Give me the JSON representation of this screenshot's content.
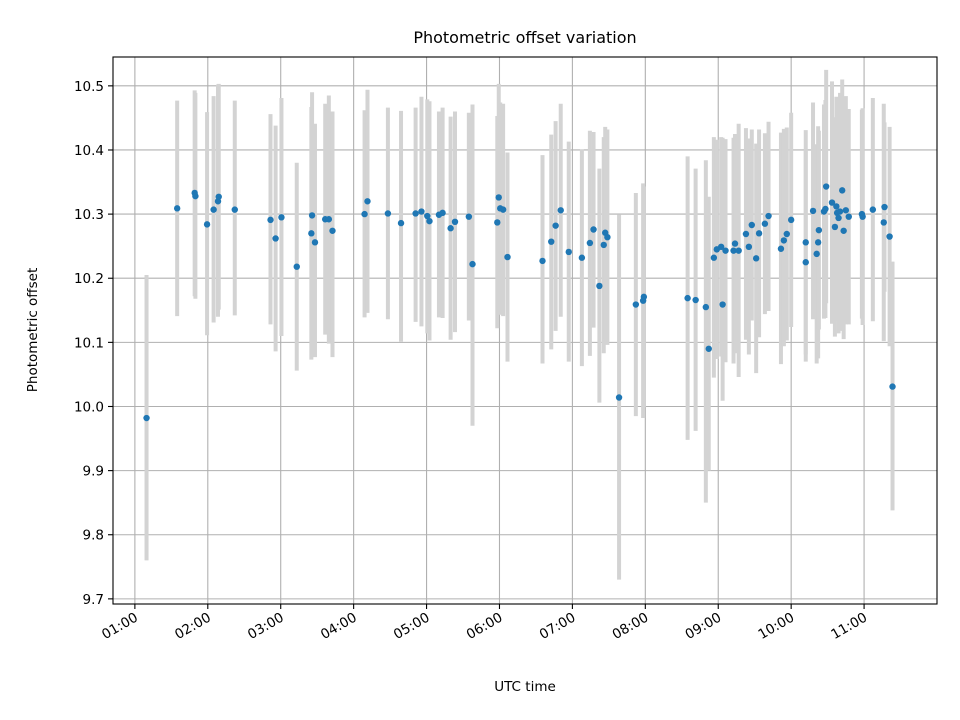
{
  "chart_data": {
    "type": "scatter",
    "title": "Photometric offset variation",
    "xlabel": "UTC time",
    "ylabel": "Photometric offset",
    "xlim": [
      0.7,
      12.0
    ],
    "ylim": [
      9.692,
      10.545
    ],
    "xticks": [
      1,
      2,
      3,
      4,
      5,
      6,
      7,
      8,
      9,
      10,
      11
    ],
    "xtick_labels": [
      "01:00",
      "02:00",
      "03:00",
      "04:00",
      "05:00",
      "06:00",
      "07:00",
      "08:00",
      "09:00",
      "10:00",
      "11:00"
    ],
    "yticks": [
      9.7,
      9.8,
      9.9,
      10.0,
      10.1,
      10.2,
      10.3,
      10.4,
      10.5
    ],
    "ytick_labels": [
      "9.7",
      "9.8",
      "9.9",
      "10.0",
      "10.1",
      "10.2",
      "10.3",
      "10.4",
      "10.5"
    ],
    "grid": true,
    "point_color": "#1f77b4",
    "errorbar_color": "#d3d3d3",
    "series": [
      {
        "name": "offset",
        "x": [
          1.16,
          1.58,
          1.82,
          1.83,
          1.99,
          2.08,
          2.14,
          2.15,
          2.37,
          2.86,
          2.93,
          3.01,
          3.22,
          3.42,
          3.43,
          3.47,
          3.61,
          3.66,
          3.71,
          4.15,
          4.19,
          4.47,
          4.65,
          4.85,
          4.93,
          5.01,
          5.04,
          5.17,
          5.22,
          5.33,
          5.39,
          5.58,
          5.63,
          5.97,
          5.99,
          6.01,
          6.05,
          6.11,
          6.59,
          6.71,
          6.77,
          6.84,
          6.95,
          7.13,
          7.24,
          7.29,
          7.37,
          7.43,
          7.45,
          7.48,
          7.64,
          7.87,
          7.97,
          7.98,
          8.58,
          8.69,
          8.83,
          8.87,
          8.94,
          8.98,
          9.04,
          9.06,
          9.1,
          9.21,
          9.23,
          9.28,
          9.38,
          9.42,
          9.46,
          9.52,
          9.56,
          9.64,
          9.69,
          9.86,
          9.9,
          9.94,
          10.0,
          10.2,
          10.2,
          10.3,
          10.35,
          10.37,
          10.38,
          10.45,
          10.47,
          10.48,
          10.56,
          10.6,
          10.62,
          10.63,
          10.65,
          10.67,
          10.7,
          10.72,
          10.75,
          10.79,
          10.97,
          10.98,
          11.12,
          11.27,
          11.28,
          11.35,
          11.39
        ],
        "y": [
          9.982,
          10.309,
          10.333,
          10.328,
          10.284,
          10.307,
          10.32,
          10.327,
          10.307,
          10.291,
          10.262,
          10.295,
          10.218,
          10.27,
          10.298,
          10.256,
          10.292,
          10.292,
          10.274,
          10.3,
          10.32,
          10.301,
          10.286,
          10.301,
          10.304,
          10.297,
          10.289,
          10.299,
          10.302,
          10.278,
          10.288,
          10.296,
          10.222,
          10.287,
          10.326,
          10.309,
          10.307,
          10.233,
          10.227,
          10.257,
          10.282,
          10.306,
          10.241,
          10.232,
          10.255,
          10.276,
          10.188,
          10.252,
          10.271,
          10.264,
          10.014,
          10.159,
          10.165,
          10.171,
          10.169,
          10.166,
          10.155,
          10.09,
          10.232,
          10.245,
          10.249,
          10.159,
          10.243,
          10.243,
          10.254,
          10.243,
          10.269,
          10.249,
          10.283,
          10.231,
          10.27,
          10.285,
          10.297,
          10.246,
          10.259,
          10.269,
          10.291,
          10.225,
          10.256,
          10.305,
          10.238,
          10.256,
          10.275,
          10.304,
          10.308,
          10.343,
          10.318,
          10.28,
          10.312,
          10.302,
          10.294,
          10.304,
          10.337,
          10.274,
          10.306,
          10.296,
          10.3,
          10.296,
          10.307,
          10.287,
          10.311,
          10.265,
          10.031
        ],
        "y_upper": [
          10.205,
          10.477,
          10.493,
          10.489,
          10.459,
          10.484,
          10.502,
          10.503,
          10.477,
          10.456,
          10.438,
          10.481,
          10.38,
          10.467,
          10.49,
          10.441,
          10.472,
          10.485,
          10.46,
          10.462,
          10.494,
          10.466,
          10.461,
          10.466,
          10.483,
          10.479,
          10.476,
          10.46,
          10.466,
          10.452,
          10.46,
          10.458,
          10.471,
          10.453,
          10.503,
          10.474,
          10.472,
          10.396,
          10.392,
          10.424,
          10.445,
          10.472,
          10.413,
          10.401,
          10.43,
          10.428,
          10.371,
          10.42,
          10.436,
          10.432,
          10.299,
          10.333,
          10.348,
          10.343,
          10.39,
          10.371,
          10.384,
          10.327,
          10.42,
          10.416,
          10.42,
          10.419,
          10.417,
          10.419,
          10.425,
          10.441,
          10.434,
          10.418,
          10.432,
          10.41,
          10.432,
          10.426,
          10.444,
          10.427,
          10.433,
          10.435,
          10.458,
          10.4,
          10.431,
          10.474,
          10.409,
          10.437,
          10.43,
          10.471,
          10.478,
          10.525,
          10.507,
          10.451,
          10.483,
          10.471,
          10.474,
          10.489,
          10.51,
          10.443,
          10.484,
          10.464,
          10.463,
          10.465,
          10.481,
          10.472,
          10.443,
          10.436,
          10.226
        ],
        "y_lower": [
          9.76,
          10.141,
          10.172,
          10.168,
          10.111,
          10.131,
          10.14,
          10.151,
          10.142,
          10.128,
          10.086,
          10.11,
          10.056,
          10.073,
          10.107,
          10.077,
          10.112,
          10.098,
          10.077,
          10.139,
          10.146,
          10.136,
          10.101,
          10.132,
          10.125,
          10.114,
          10.103,
          10.139,
          10.138,
          10.104,
          10.116,
          10.134,
          9.97,
          10.122,
          10.149,
          10.143,
          10.141,
          10.07,
          10.067,
          10.089,
          10.118,
          10.14,
          10.07,
          10.063,
          10.079,
          10.123,
          10.006,
          10.083,
          10.105,
          10.096,
          9.73,
          9.985,
          9.982,
          9.999,
          9.948,
          9.962,
          9.85,
          9.9,
          10.045,
          10.074,
          10.078,
          10.009,
          10.069,
          10.067,
          10.083,
          10.046,
          10.104,
          10.081,
          10.134,
          10.052,
          10.108,
          10.144,
          10.149,
          10.066,
          10.094,
          10.103,
          10.124,
          10.07,
          10.081,
          10.136,
          10.067,
          10.075,
          10.12,
          10.137,
          10.138,
          10.161,
          10.129,
          10.109,
          10.141,
          10.133,
          10.114,
          10.118,
          10.164,
          10.105,
          10.128,
          10.128,
          10.137,
          10.127,
          10.133,
          10.102,
          10.179,
          10.094,
          9.838
        ]
      }
    ]
  }
}
